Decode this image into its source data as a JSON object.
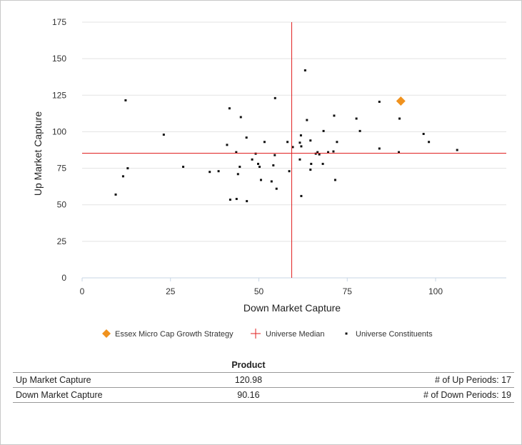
{
  "chart_data": {
    "type": "scatter",
    "xlabel": "Down Market Capture",
    "ylabel": "Up Market Capture",
    "xlim": [
      0,
      120
    ],
    "ylim": [
      0,
      175
    ],
    "xticks": [
      0,
      25,
      50,
      75,
      100
    ],
    "yticks": [
      0,
      25,
      50,
      75,
      100,
      125,
      150,
      175
    ],
    "grid": "horizontal",
    "legend_placement": "bottom",
    "median": {
      "name": "Universe Median",
      "x": 59.3,
      "y": 85.3,
      "color": "#e02020"
    },
    "series": [
      {
        "name": "Essex Micro Cap Growth Strategy",
        "marker": "diamond",
        "color": "#f0921e",
        "points": [
          {
            "x": 90.16,
            "y": 120.98
          }
        ]
      },
      {
        "name": "Universe Constituents",
        "marker": "square",
        "color": "#111111",
        "points": [
          {
            "x": 9.5,
            "y": 57
          },
          {
            "x": 11.6,
            "y": 69.5
          },
          {
            "x": 12.3,
            "y": 121.5
          },
          {
            "x": 12.9,
            "y": 75
          },
          {
            "x": 23.1,
            "y": 98
          },
          {
            "x": 28.6,
            "y": 76
          },
          {
            "x": 36.1,
            "y": 72.5
          },
          {
            "x": 38.6,
            "y": 73
          },
          {
            "x": 41.0,
            "y": 91
          },
          {
            "x": 41.7,
            "y": 116
          },
          {
            "x": 41.9,
            "y": 53.5
          },
          {
            "x": 43.6,
            "y": 86
          },
          {
            "x": 43.7,
            "y": 54
          },
          {
            "x": 44.1,
            "y": 71
          },
          {
            "x": 44.6,
            "y": 76
          },
          {
            "x": 44.9,
            "y": 110
          },
          {
            "x": 46.5,
            "y": 96
          },
          {
            "x": 46.6,
            "y": 52.5
          },
          {
            "x": 48.1,
            "y": 81
          },
          {
            "x": 49.1,
            "y": 85
          },
          {
            "x": 49.8,
            "y": 78
          },
          {
            "x": 50.2,
            "y": 76
          },
          {
            "x": 50.6,
            "y": 67
          },
          {
            "x": 51.6,
            "y": 93
          },
          {
            "x": 53.6,
            "y": 66
          },
          {
            "x": 54.1,
            "y": 77
          },
          {
            "x": 54.5,
            "y": 84
          },
          {
            "x": 54.6,
            "y": 123
          },
          {
            "x": 55.0,
            "y": 61
          },
          {
            "x": 58.1,
            "y": 93
          },
          {
            "x": 58.6,
            "y": 73
          },
          {
            "x": 59.6,
            "y": 89.5
          },
          {
            "x": 61.6,
            "y": 81
          },
          {
            "x": 61.6,
            "y": 92.5
          },
          {
            "x": 61.9,
            "y": 97.5
          },
          {
            "x": 62.0,
            "y": 56
          },
          {
            "x": 62.0,
            "y": 90
          },
          {
            "x": 63.1,
            "y": 142
          },
          {
            "x": 63.6,
            "y": 108
          },
          {
            "x": 64.6,
            "y": 94
          },
          {
            "x": 64.6,
            "y": 74
          },
          {
            "x": 64.8,
            "y": 78
          },
          {
            "x": 66.1,
            "y": 85
          },
          {
            "x": 66.6,
            "y": 86
          },
          {
            "x": 67.1,
            "y": 84.5
          },
          {
            "x": 68.1,
            "y": 78
          },
          {
            "x": 68.3,
            "y": 100.5
          },
          {
            "x": 69.6,
            "y": 86
          },
          {
            "x": 71.1,
            "y": 86.5
          },
          {
            "x": 71.3,
            "y": 111
          },
          {
            "x": 71.6,
            "y": 67
          },
          {
            "x": 72.1,
            "y": 93
          },
          {
            "x": 77.6,
            "y": 109
          },
          {
            "x": 78.6,
            "y": 100.5
          },
          {
            "x": 84.1,
            "y": 120.5
          },
          {
            "x": 84.1,
            "y": 88.5
          },
          {
            "x": 89.6,
            "y": 86
          },
          {
            "x": 89.8,
            "y": 109
          },
          {
            "x": 96.6,
            "y": 98.5
          },
          {
            "x": 98.1,
            "y": 93
          },
          {
            "x": 106.1,
            "y": 87.5
          }
        ]
      }
    ]
  },
  "stats_table": {
    "header": "Product",
    "rows": [
      {
        "label": "Up Market Capture",
        "value": "120.98",
        "periods": "# of Up Periods: 17"
      },
      {
        "label": "Down Market Capture",
        "value": "90.16",
        "periods": "# of Down Periods: 19"
      }
    ]
  }
}
